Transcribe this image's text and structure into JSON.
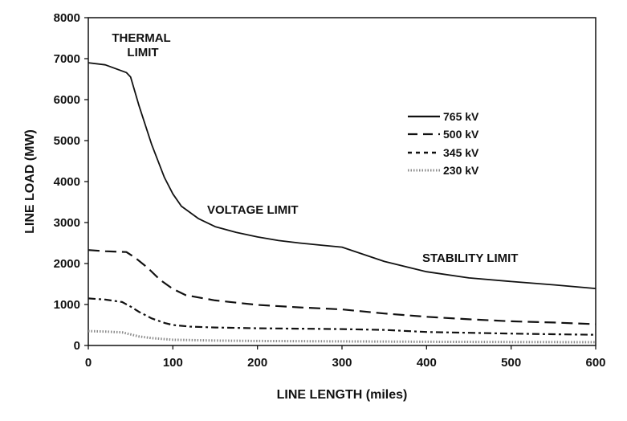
{
  "chart_data": {
    "type": "line",
    "title": "",
    "xlabel": "LINE LENGTH (miles)",
    "ylabel": "LINE LOAD (MW)",
    "xlim": [
      0,
      600
    ],
    "ylim": [
      0,
      8000
    ],
    "xticks": [
      "0",
      "100",
      "200",
      "300",
      "400",
      "500",
      "600"
    ],
    "yticks": [
      "0",
      "1000",
      "2000",
      "3000",
      "4000",
      "5000",
      "6000",
      "7000",
      "8000"
    ],
    "grid": false,
    "legend_position": "right",
    "annotations": [
      {
        "lines": [
          "THERMAL",
          "LIMIT"
        ]
      },
      {
        "lines": [
          "VOLTAGE LIMIT"
        ]
      },
      {
        "lines": [
          "STABILITY LIMIT"
        ]
      }
    ],
    "series": [
      {
        "name": "765 kV",
        "style": "solid",
        "color": "#111111",
        "x": [
          0,
          20,
          45,
          50,
          60,
          75,
          90,
          100,
          110,
          130,
          150,
          175,
          200,
          225,
          250,
          275,
          300,
          350,
          400,
          450,
          500,
          550,
          600
        ],
        "y": [
          6900,
          6850,
          6660,
          6550,
          5850,
          4900,
          4100,
          3700,
          3400,
          3100,
          2900,
          2760,
          2650,
          2560,
          2500,
          2450,
          2400,
          2050,
          1800,
          1650,
          1560,
          1480,
          1390
        ]
      },
      {
        "name": "500 kV",
        "style": "dash",
        "color": "#111111",
        "x": [
          0,
          20,
          45,
          55,
          70,
          85,
          100,
          115,
          150,
          200,
          250,
          300,
          350,
          400,
          450,
          500,
          550,
          600
        ],
        "y": [
          2330,
          2300,
          2280,
          2150,
          1900,
          1600,
          1380,
          1230,
          1100,
          990,
          930,
          880,
          780,
          700,
          640,
          590,
          560,
          520
        ]
      },
      {
        "name": "345 kV",
        "style": "dashdot",
        "color": "#111111",
        "x": [
          0,
          20,
          40,
          50,
          60,
          75,
          90,
          100,
          120,
          150,
          200,
          250,
          300,
          350,
          400,
          450,
          500,
          550,
          600
        ],
        "y": [
          1150,
          1120,
          1060,
          950,
          820,
          660,
          550,
          500,
          460,
          440,
          420,
          410,
          400,
          380,
          330,
          310,
          290,
          275,
          260
        ]
      },
      {
        "name": "230 kV",
        "style": "dotted",
        "color": "#8a8a8a",
        "x": [
          0,
          20,
          40,
          50,
          60,
          75,
          100,
          150,
          200,
          300,
          400,
          500,
          600
        ],
        "y": [
          350,
          340,
          320,
          270,
          220,
          180,
          140,
          120,
          110,
          100,
          90,
          85,
          80
        ]
      }
    ]
  }
}
